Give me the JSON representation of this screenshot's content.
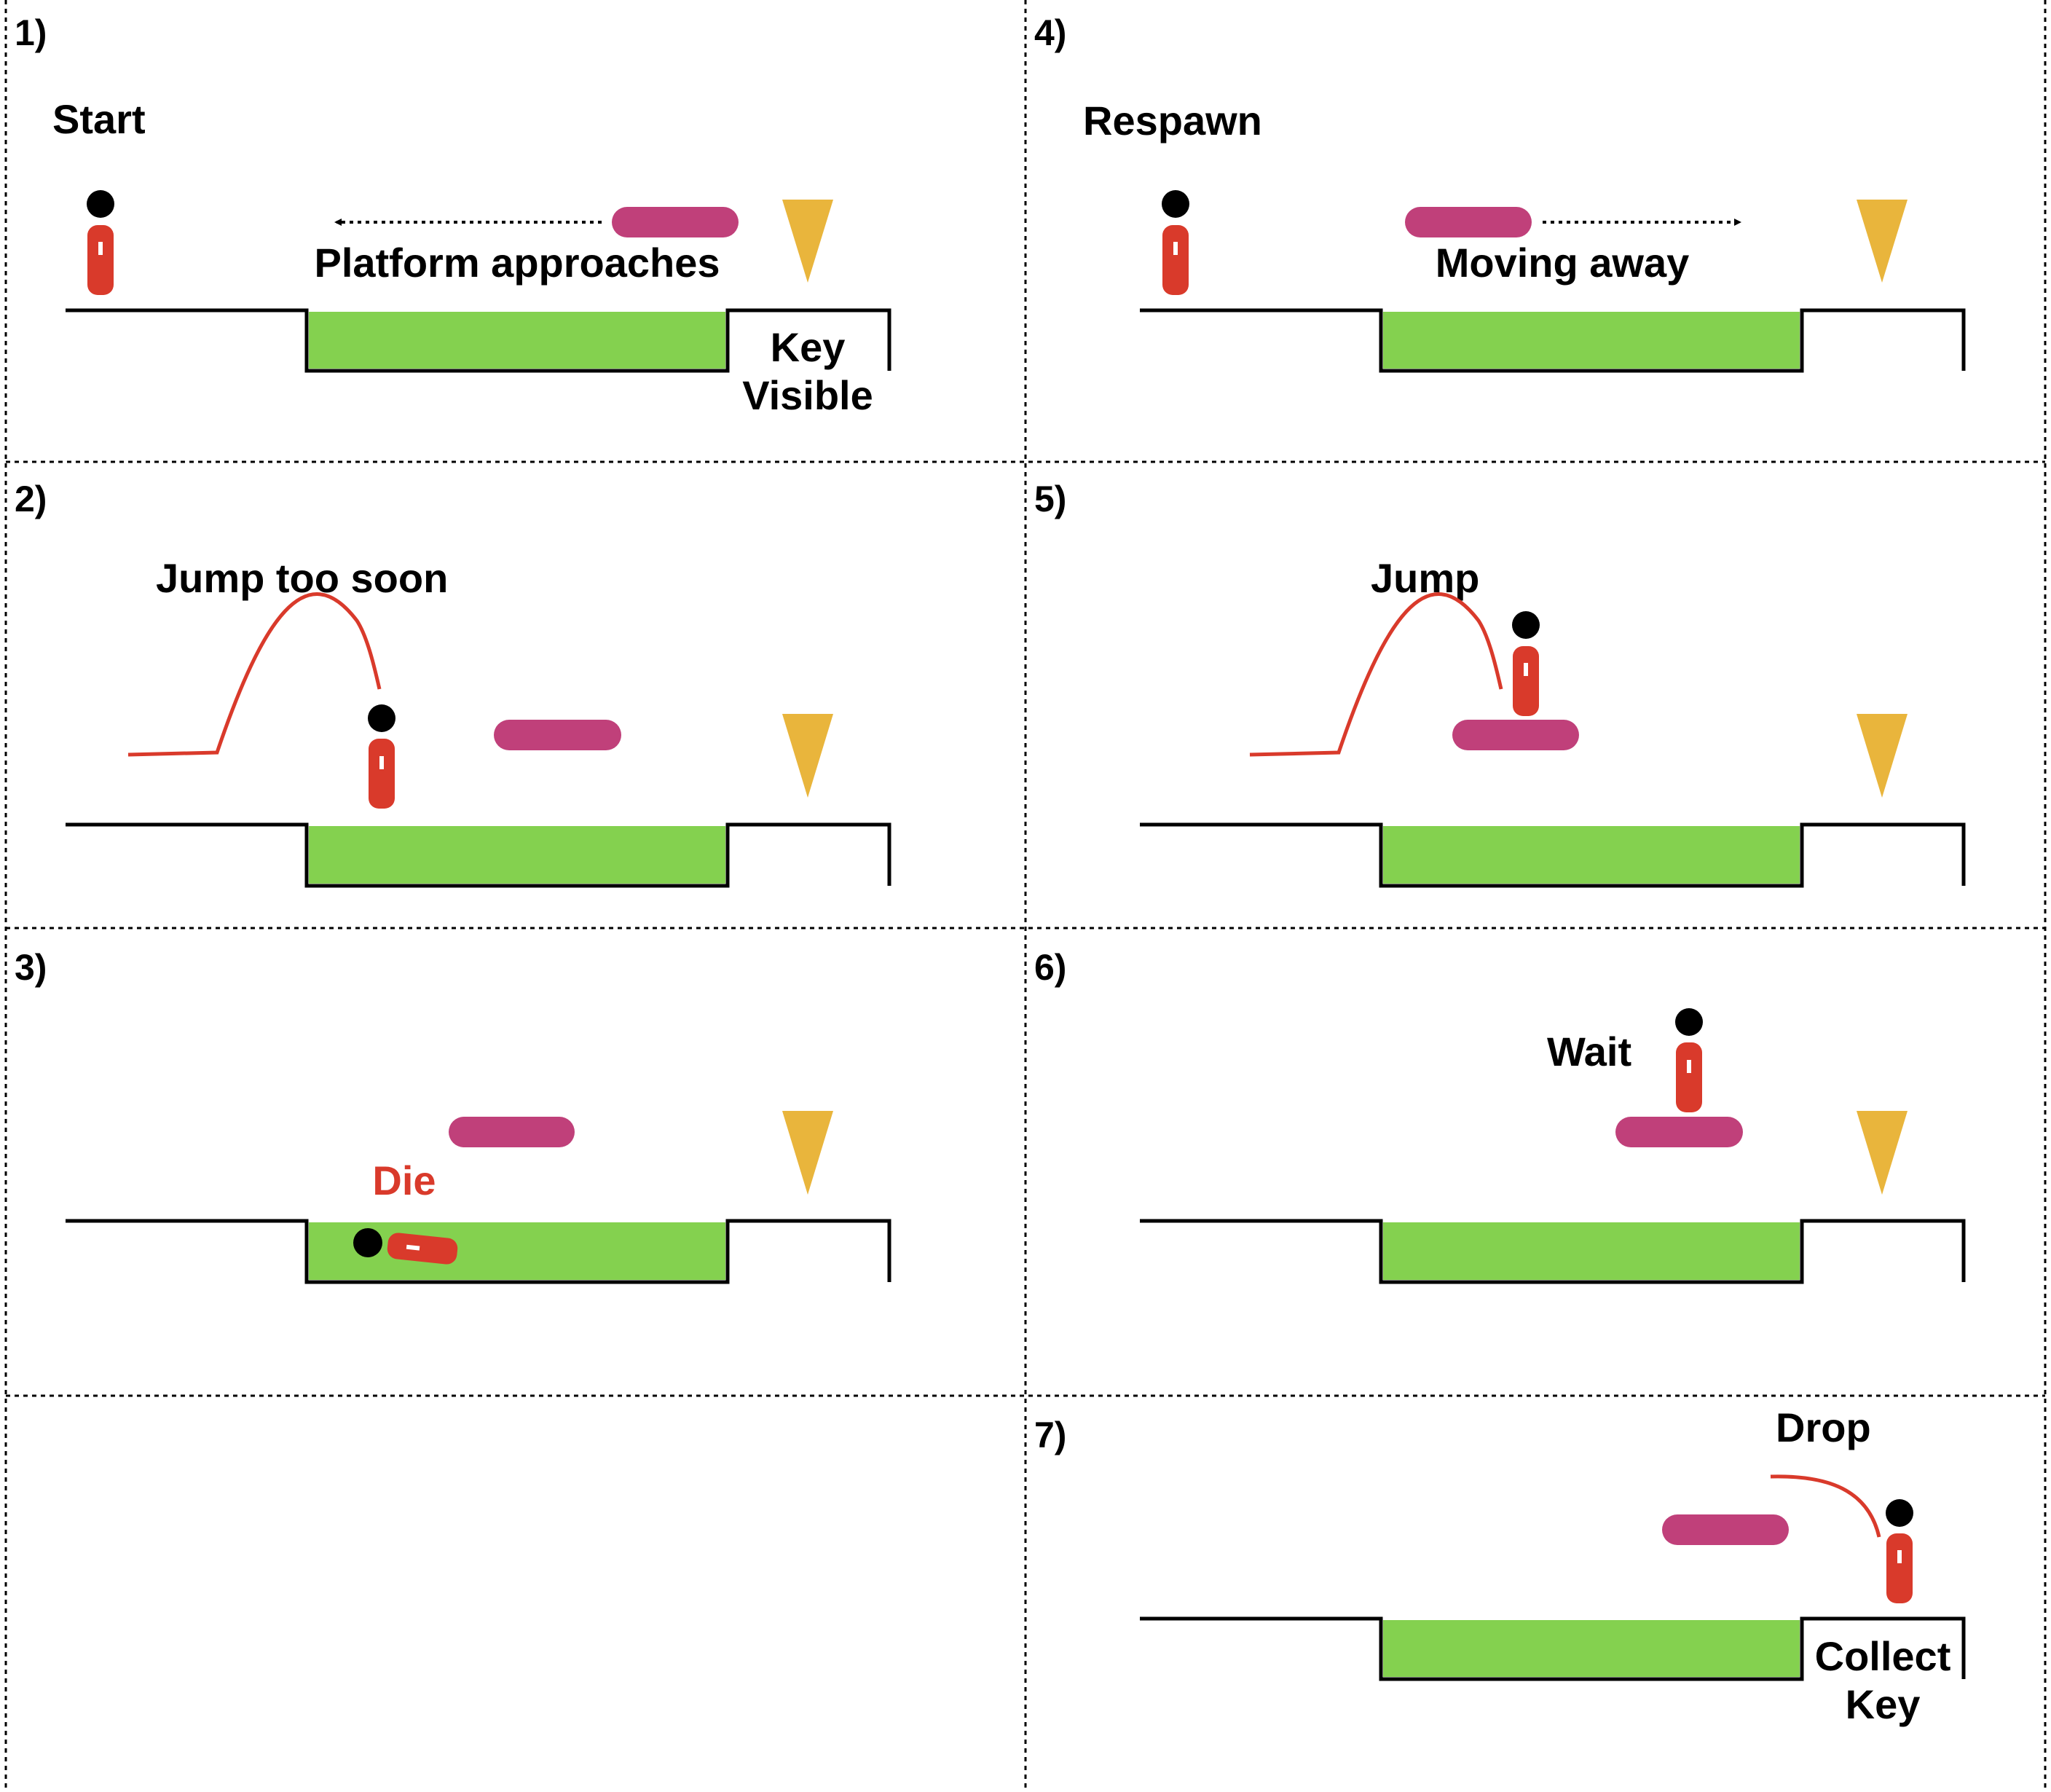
{
  "colors": {
    "water": "#84d14f",
    "platform": "#c0407a",
    "key": "#e9b53c",
    "character_body": "#d93a2b",
    "character_head": "#000000",
    "trajectory": "#d93a2b",
    "die_label": "#d93a2b"
  },
  "panels": [
    {
      "number": "1)",
      "label": "Start",
      "platform_label": "Platform approaches",
      "key_label_line1": "Key",
      "key_label_line2": "Visible"
    },
    {
      "number": "2)",
      "label": "Jump too soon"
    },
    {
      "number": "3)",
      "label": "Die"
    },
    {
      "number": "4)",
      "label": "Respawn",
      "platform_label": "Moving away"
    },
    {
      "number": "5)",
      "label": "Jump"
    },
    {
      "number": "6)",
      "label": "Wait"
    },
    {
      "number": "7)",
      "label": "Drop",
      "key_label_line1": "Collect",
      "key_label_line2": "Key"
    }
  ]
}
